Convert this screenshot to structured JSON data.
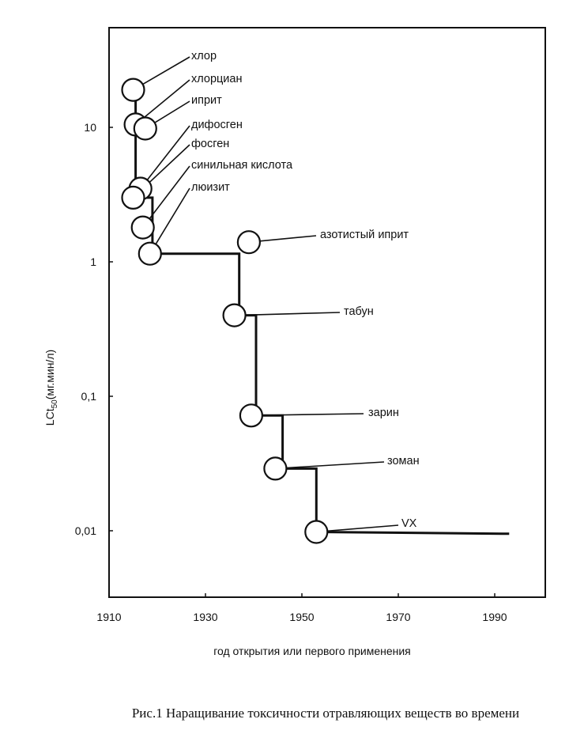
{
  "chart_data": {
    "type": "line",
    "title": "",
    "xlabel": "год открытия или первого применения",
    "ylabel_main": "LCt",
    "ylabel_sub": "50",
    "ylabel_rest": "(мг.мин/л)",
    "xlim": [
      1910,
      1994
    ],
    "ylim": [
      0.0035,
      60
    ],
    "yscale": "log",
    "x_ticks": [
      {
        "value": 1910,
        "label": "1910"
      },
      {
        "value": 1930,
        "label": "1930"
      },
      {
        "value": 1950,
        "label": "1950"
      },
      {
        "value": 1970,
        "label": "1970"
      },
      {
        "value": 1990,
        "label": "1990"
      }
    ],
    "y_ticks": [
      {
        "value": 10,
        "label": "10"
      },
      {
        "value": 1,
        "label": "1"
      },
      {
        "value": 0.1,
        "label": "0,1"
      },
      {
        "value": 0.01,
        "label": "0,01"
      }
    ],
    "grid": false,
    "points": [
      {
        "name": "хлор",
        "x": 1915,
        "y": 19
      },
      {
        "name": "хлорциан",
        "x": 1915.5,
        "y": 10.5
      },
      {
        "name": "иприт",
        "x": 1917.5,
        "y": 9.8
      },
      {
        "name": "дифосген",
        "x": 1916.5,
        "y": 3.5
      },
      {
        "name": "фосген",
        "x": 1915,
        "y": 3.0
      },
      {
        "name": "синильная кислота",
        "x": 1917,
        "y": 1.8
      },
      {
        "name": "люизит",
        "x": 1918.5,
        "y": 1.15
      },
      {
        "name": "азотистый иприт",
        "x": 1939,
        "y": 1.4
      },
      {
        "name": "табун",
        "x": 1936,
        "y": 0.4
      },
      {
        "name": "зарин",
        "x": 1939.5,
        "y": 0.072
      },
      {
        "name": "зоман",
        "x": 1944.5,
        "y": 0.029
      },
      {
        "name": "VX",
        "x": 1953,
        "y": 0.0098
      }
    ],
    "step_line": [
      [
        1915.5,
        19
      ],
      [
        1915.5,
        3.0
      ],
      [
        1919,
        3.0
      ],
      [
        1919,
        1.15
      ],
      [
        1937,
        1.15
      ],
      [
        1937,
        0.4
      ],
      [
        1940.5,
        0.4
      ],
      [
        1940.5,
        0.072
      ],
      [
        1946,
        0.072
      ],
      [
        1946,
        0.029
      ],
      [
        1953,
        0.029
      ],
      [
        1953,
        0.0098
      ],
      [
        1993,
        0.0095
      ]
    ]
  },
  "caption": "Рис.1 Наращивание токсичности отравляющих веществ во времени"
}
